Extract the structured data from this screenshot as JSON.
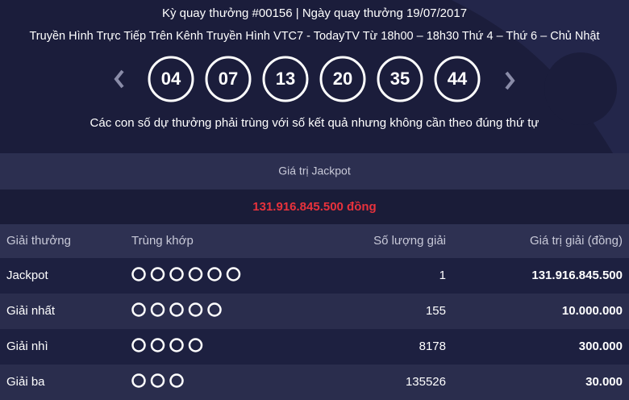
{
  "header": {
    "line1": "Kỳ quay thưởng #00156 | Ngày quay thưởng 19/07/2017",
    "line2": "Truyền Hình Trực Tiếp Trên Kênh Truyền Hình VTC7 - TodayTV Từ 18h00 – 18h30 Thứ 4 – Thứ 6 – Chủ Nhật"
  },
  "numbers": [
    "04",
    "07",
    "13",
    "20",
    "35",
    "44"
  ],
  "note": "Các con số dự thưởng phải trùng với số kết quả nhưng không cần theo đúng thứ tự",
  "jackpot": {
    "label": "Giá trị Jackpot",
    "value": "131.916.845.500 đồng"
  },
  "table": {
    "headers": [
      "Giải thưởng",
      "Trùng khớp",
      "Số lượng giải",
      "Giá trị giải (đồng)"
    ],
    "rows": [
      {
        "name": "Jackpot",
        "matches": 6,
        "count": 1,
        "prize": "131.916.845.500"
      },
      {
        "name": "Giải nhất",
        "matches": 5,
        "count": 155,
        "prize": "10.000.000"
      },
      {
        "name": "Giải nhì",
        "matches": 4,
        "count": 8178,
        "prize": "300.000"
      },
      {
        "name": "Giải ba",
        "matches": 3,
        "count": 135526,
        "prize": "30.000"
      }
    ]
  }
}
